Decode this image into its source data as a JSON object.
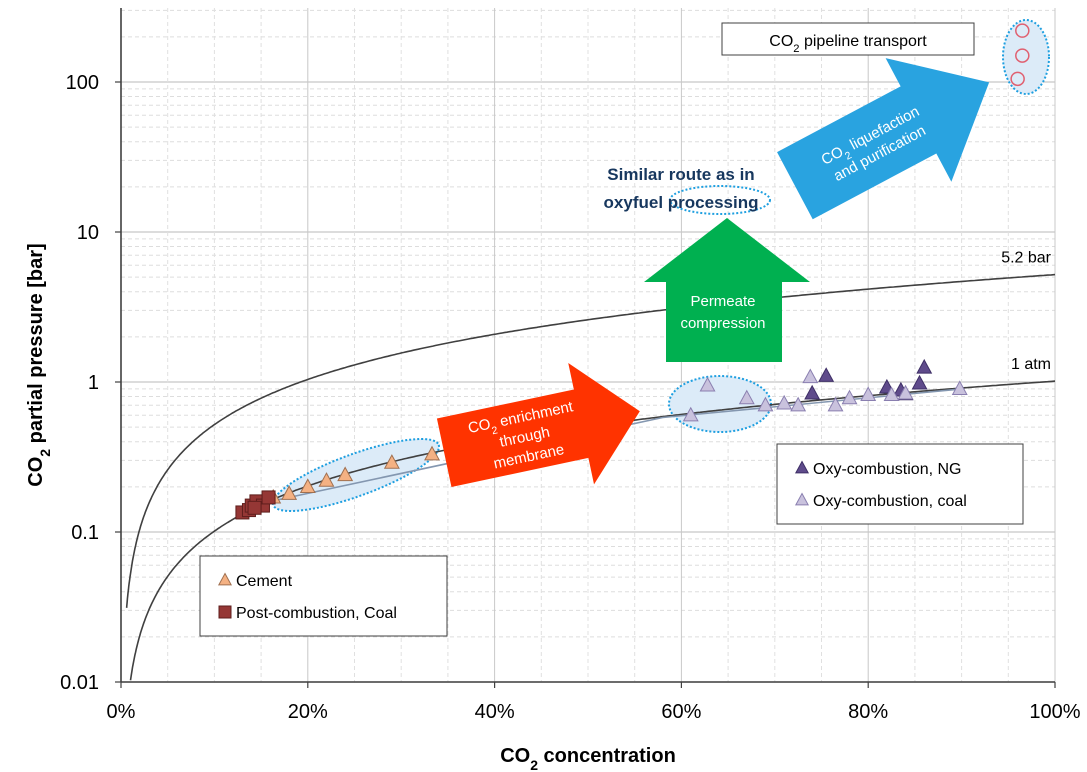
{
  "chart_data": {
    "type": "scatter",
    "xlabel": "CO₂ concentration",
    "ylabel": "CO₂ partial pressure [bar]",
    "x_unit": "%",
    "xlim": [
      0,
      100
    ],
    "ylim": [
      0.01,
      300
    ],
    "y_scale": "log",
    "x_ticks": [
      "0%",
      "20%",
      "40%",
      "60%",
      "80%",
      "100%"
    ],
    "y_ticks": [
      "0.01",
      "0.1",
      "1",
      "10",
      "100"
    ],
    "grid": true,
    "curves": [
      {
        "label": "5.2 bar",
        "total_pressure": 5.2
      },
      {
        "label": "1 atm",
        "total_pressure": 1.01325
      }
    ],
    "series": [
      {
        "name": "Cement",
        "marker": "triangle",
        "color": "#F4B183",
        "edge": "#A07050",
        "points": [
          [
            16.3,
            0.17
          ],
          [
            18,
            0.18
          ],
          [
            20,
            0.2
          ],
          [
            22,
            0.22
          ],
          [
            24,
            0.24
          ],
          [
            29,
            0.29
          ],
          [
            33.3,
            0.33
          ]
        ]
      },
      {
        "name": "Post-combustion, Coal",
        "marker": "square",
        "color": "#953735",
        "edge": "#5E1E1C",
        "points": [
          [
            13,
            0.135
          ],
          [
            13.7,
            0.14
          ],
          [
            14,
            0.15
          ],
          [
            14.5,
            0.16
          ],
          [
            15.2,
            0.15
          ],
          [
            15.8,
            0.17
          ],
          [
            14.3,
            0.145
          ]
        ]
      },
      {
        "name": "Oxy-combustion, NG",
        "marker": "triangle",
        "color": "#5F4B8B",
        "edge": "#3E2F66",
        "points": [
          [
            74,
            0.84
          ],
          [
            75.5,
            1.1
          ],
          [
            82,
            0.92
          ],
          [
            83.5,
            0.88
          ],
          [
            84,
            0.83
          ],
          [
            85.5,
            0.98
          ],
          [
            86,
            1.25
          ]
        ]
      },
      {
        "name": "Oxy-combustion, coal",
        "marker": "triangle",
        "color": "#C9C2DD",
        "edge": "#8A7FB0",
        "points": [
          [
            61,
            0.6
          ],
          [
            62.8,
            0.95
          ],
          [
            67,
            0.78
          ],
          [
            69,
            0.7
          ],
          [
            71,
            0.72
          ],
          [
            72.5,
            0.7
          ],
          [
            73.8,
            1.08
          ],
          [
            76.5,
            0.7
          ],
          [
            78,
            0.78
          ],
          [
            80,
            0.82
          ],
          [
            82.5,
            0.82
          ],
          [
            84,
            0.84
          ],
          [
            89.8,
            0.9
          ]
        ]
      },
      {
        "name": "CO₂ pipeline transport",
        "marker": "circle",
        "color": "none",
        "edge": "#E06070",
        "points": [
          [
            96.5,
            220
          ],
          [
            96.5,
            150
          ],
          [
            96,
            105
          ]
        ]
      }
    ],
    "trend_line": [
      [
        16,
        0.16
      ],
      [
        58,
        0.58
      ],
      [
        90,
        0.9
      ]
    ],
    "legends": [
      {
        "position": "bottom-left",
        "entries": [
          "Cement",
          "Post-combustion, Coal"
        ]
      },
      {
        "position": "right",
        "entries": [
          "Oxy-combustion, NG",
          "Oxy-combustion, coal"
        ]
      }
    ],
    "annotations": {
      "pipeline_box": "CO₂ pipeline transport",
      "liquefaction_arrow": [
        "CO₂ liquefaction",
        "and purification"
      ],
      "similar_route": [
        "Similar route as in",
        "oxyfuel processing"
      ],
      "compression_arrow": [
        "Permeate",
        "compression"
      ],
      "enrichment_arrow": [
        "CO₂ enrichment",
        "through",
        "membrane"
      ]
    },
    "colors": {
      "orange_arrow": "#FF3300",
      "green_arrow": "#00B050",
      "blue_arrow": "#29A3E0",
      "route_text": "#17375E",
      "ellipse_border": "#1E9FE0",
      "ellipse_fill": "#DCEBF8"
    }
  }
}
